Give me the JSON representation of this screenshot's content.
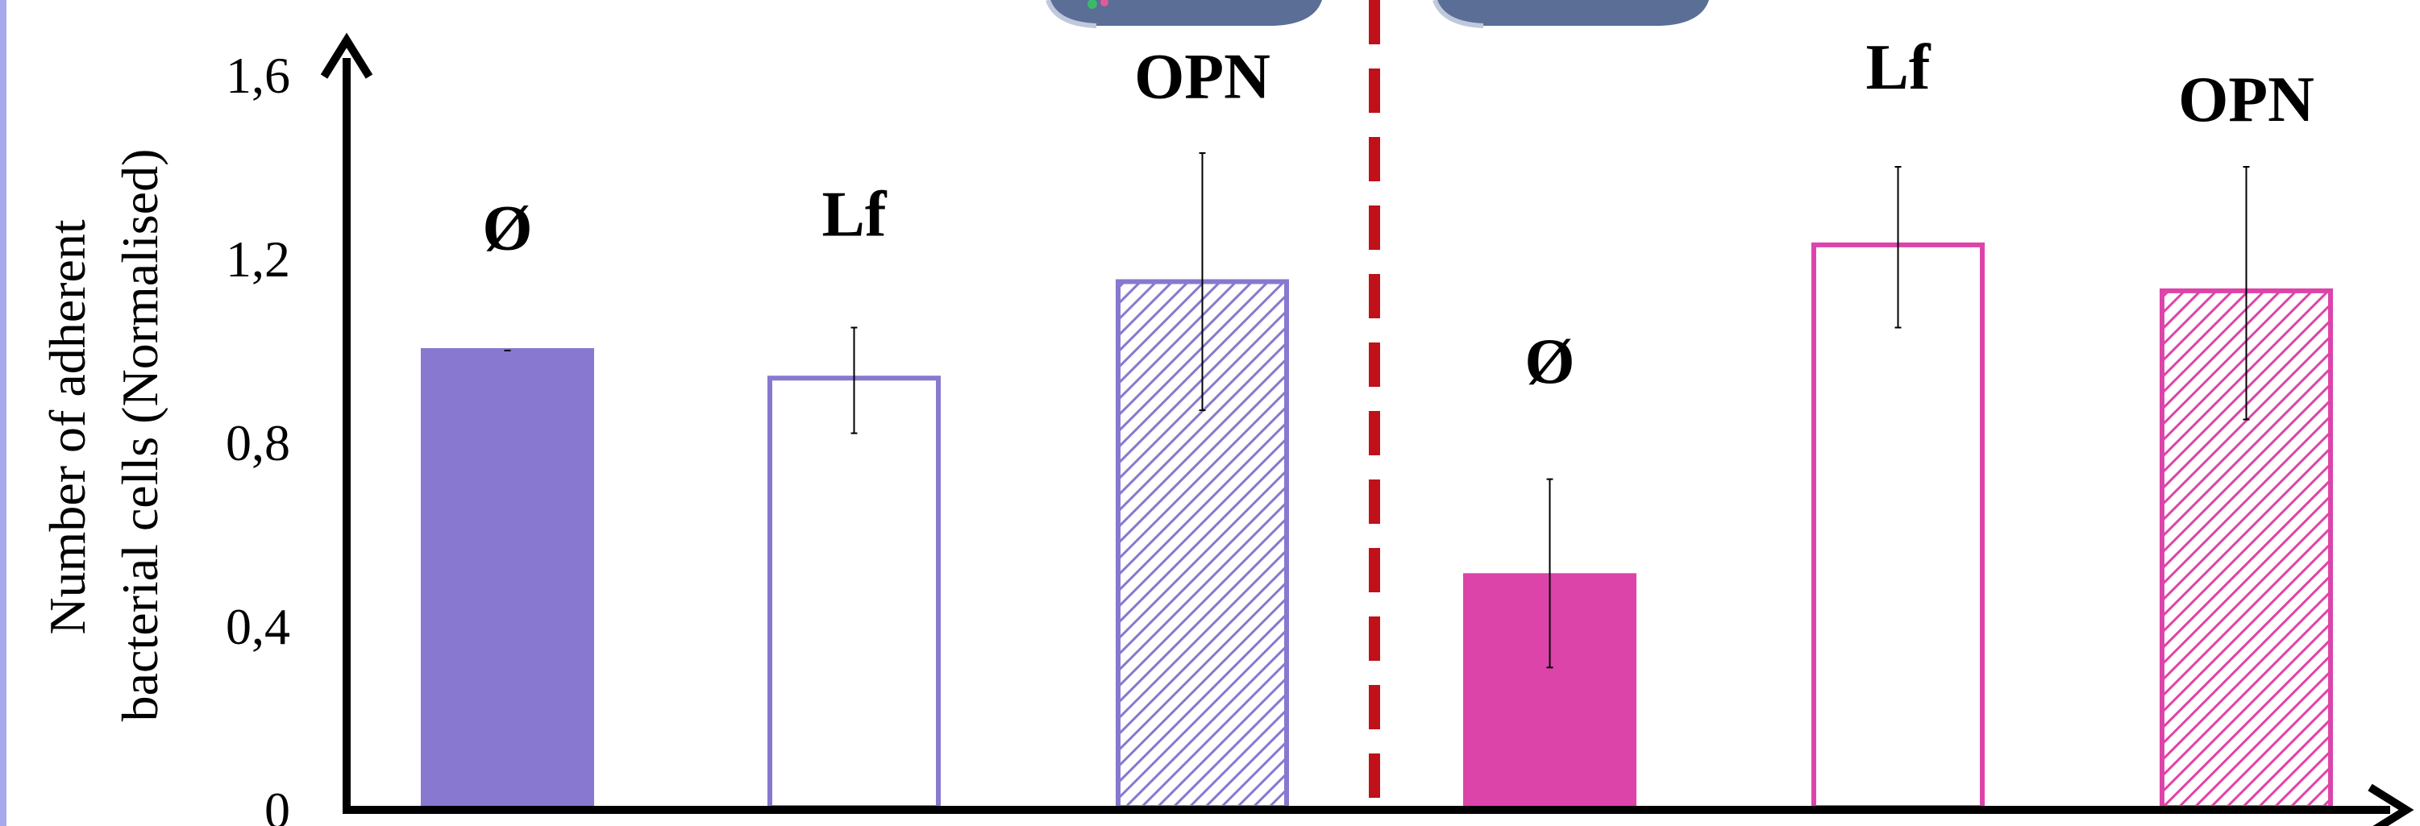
{
  "chart_data": {
    "type": "bar",
    "ylabel": [
      "Number of adherent",
      "bacterial cells (Normalised)"
    ],
    "ylim": [
      0,
      1.6
    ],
    "yticks": [
      {
        "value": 0,
        "label": "0"
      },
      {
        "value": 0.4,
        "label": "0,4"
      },
      {
        "value": 0.8,
        "label": "0,8"
      },
      {
        "value": 1.2,
        "label": "1,2"
      },
      {
        "value": 1.6,
        "label": "1,6"
      }
    ],
    "bars": [
      {
        "label": "Ø",
        "value": 1.0,
        "err_low": 1.0,
        "err_high": 1.0,
        "color": "#8878cf",
        "style": "solid"
      },
      {
        "label": "Lf",
        "value": 0.94,
        "err_low": 0.82,
        "err_high": 1.05,
        "color": "#8878cf",
        "style": "outline"
      },
      {
        "label": "OPN",
        "value": 1.15,
        "err_low": 0.87,
        "err_high": 1.43,
        "color": "#8878cf",
        "style": "hatched"
      },
      {
        "label": "Ø",
        "value": 0.51,
        "err_low": 0.31,
        "err_high": 0.72,
        "color": "#dd44aa",
        "style": "solid"
      },
      {
        "label": "Lf",
        "value": 1.23,
        "err_low": 1.05,
        "err_high": 1.4,
        "color": "#dd44aa",
        "style": "outline"
      },
      {
        "label": "OPN",
        "value": 1.13,
        "err_low": 0.85,
        "err_high": 1.4,
        "color": "#dd44aa",
        "style": "hatched"
      }
    ],
    "label_values": [
      1.22,
      1.25,
      1.55,
      0.93,
      1.57,
      1.5
    ],
    "divider_color": "#c0101a",
    "left_strip_color": "#a8a8ee",
    "icon_color": "#5a6e96"
  }
}
